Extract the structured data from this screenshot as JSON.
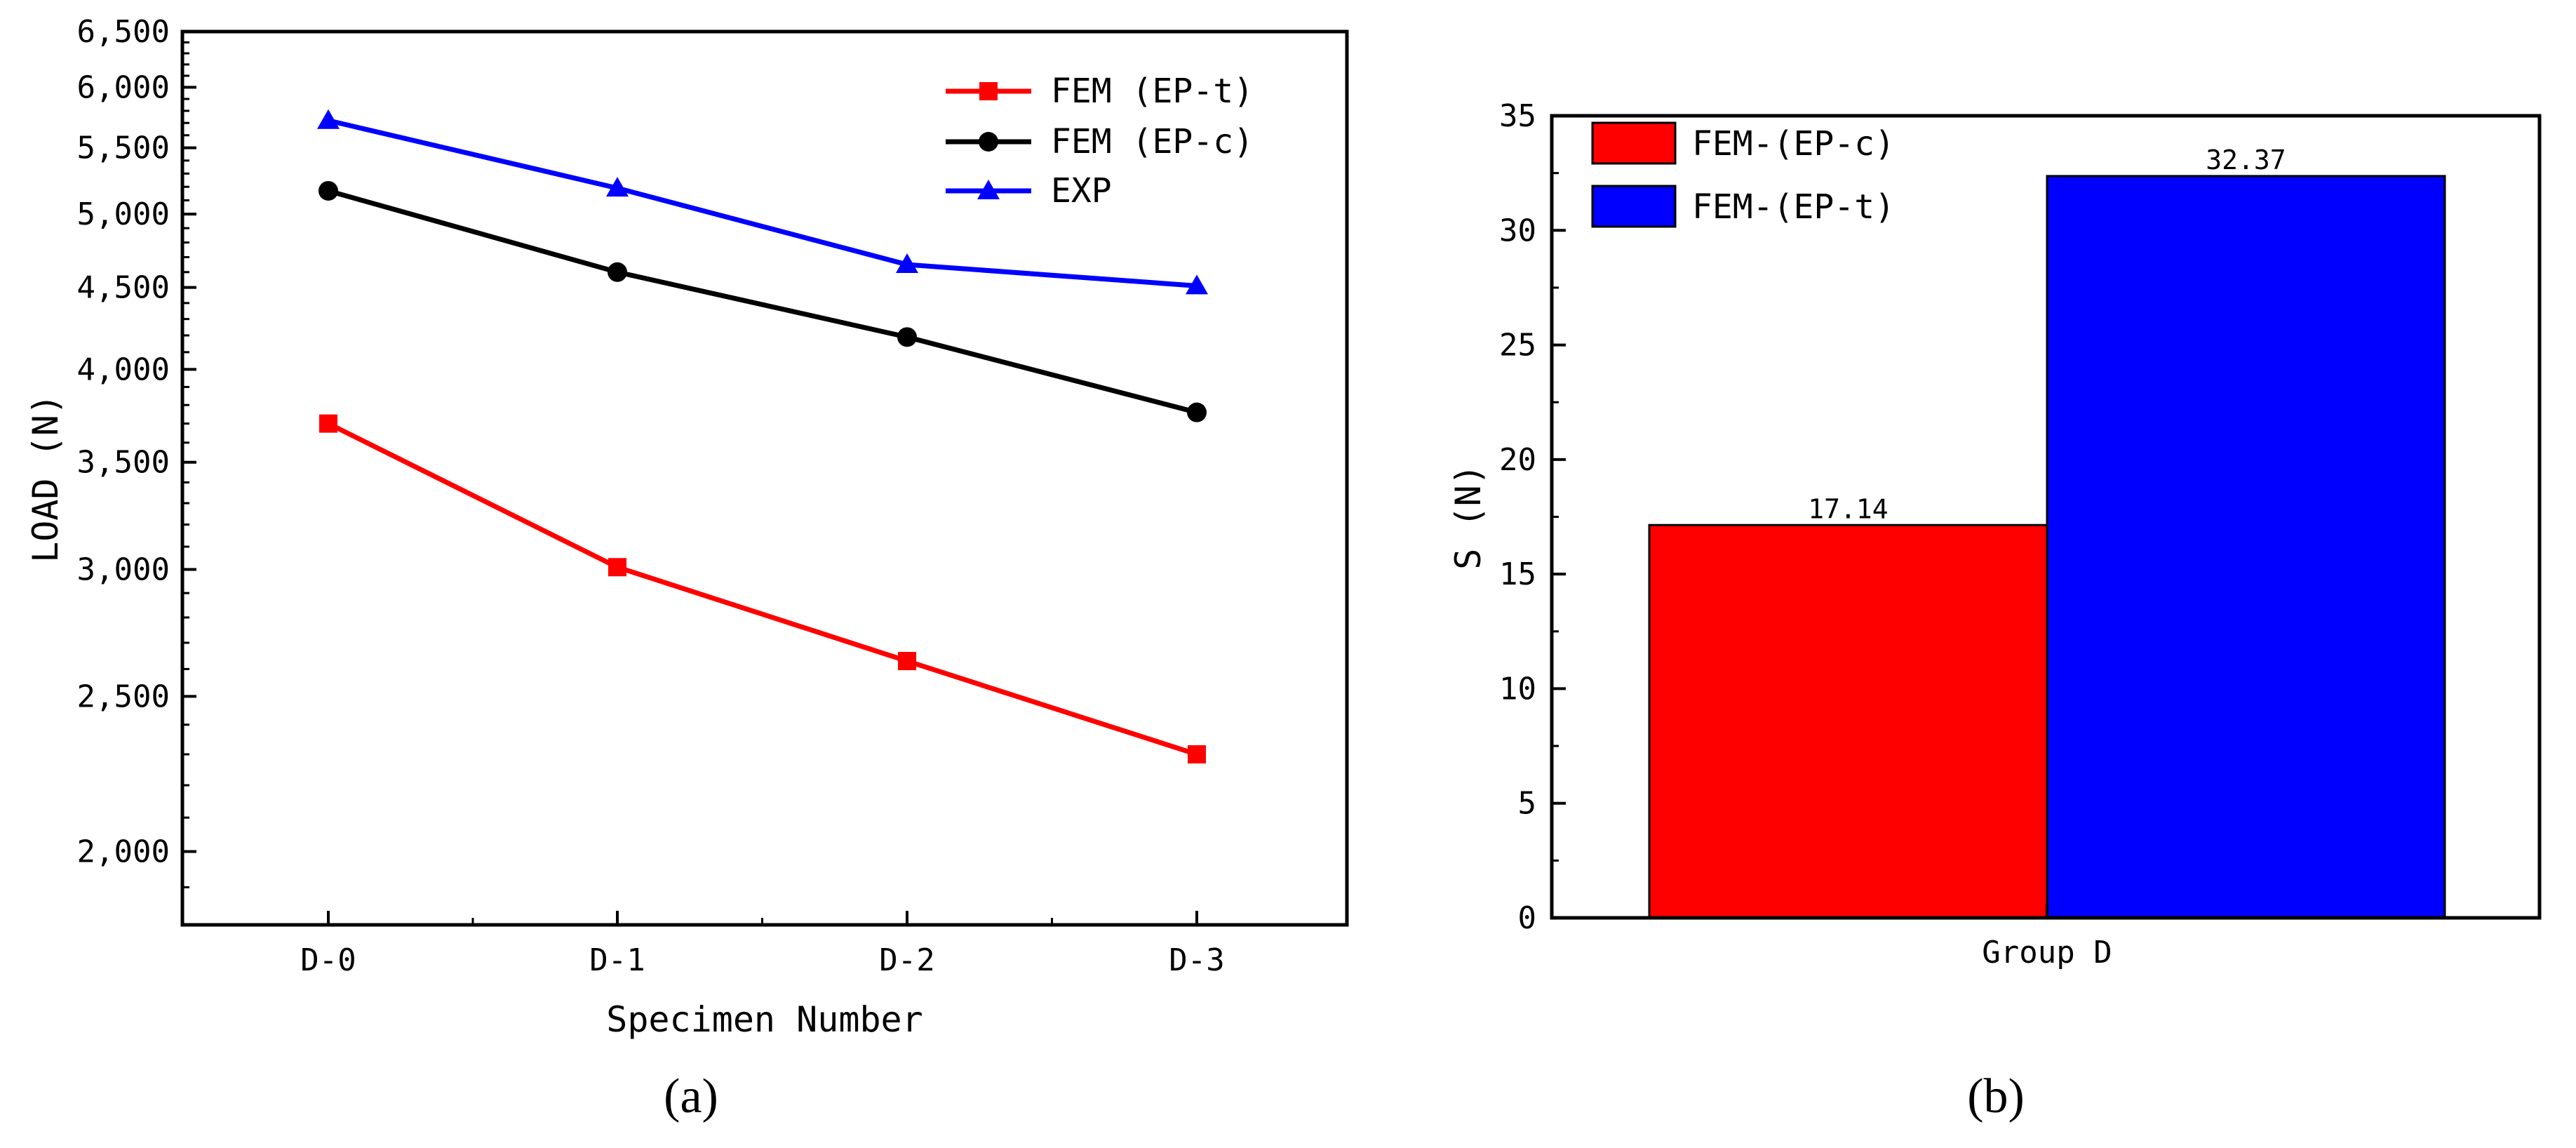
{
  "panels": [
    {
      "label": "(a)",
      "chart_data": {
        "type": "line",
        "xlabel": "Specimen Number",
        "ylabel": "LOAD (N)",
        "yscale": "log",
        "ylim": [
          1800,
          6500
        ],
        "categories": [
          "D-0",
          "D-1",
          "D-2",
          "D-3"
        ],
        "yticks": [
          2000,
          2500,
          3000,
          3500,
          4000,
          4500,
          5000,
          5500,
          6000,
          6500
        ],
        "ytick_labels": [
          "2,000",
          "2,500",
          "3,000",
          "3,500",
          "4,000",
          "4,500",
          "5,000",
          "5,500",
          "6,000",
          "6,500"
        ],
        "legend_position": "top-right",
        "series": [
          {
            "name": "FEM (EP-t)",
            "color": "#ff0000",
            "marker": "square",
            "values": [
              3700,
              3010,
              2630,
              2300
            ]
          },
          {
            "name": "FEM (EP-c)",
            "color": "#000000",
            "marker": "circle",
            "values": [
              5170,
              4600,
              4190,
              3760
            ]
          },
          {
            "name": "EXP",
            "color": "#0000ff",
            "marker": "triangle",
            "values": [
              5720,
              5190,
              4650,
              4510
            ]
          }
        ]
      }
    },
    {
      "label": "(b)",
      "chart_data": {
        "type": "bar",
        "xlabel": "",
        "ylabel": "S (N)",
        "ylim": [
          0,
          35
        ],
        "yticks": [
          0,
          5,
          10,
          15,
          20,
          25,
          30,
          35
        ],
        "category": "Group D",
        "legend_position": "top-left",
        "series": [
          {
            "name": "FEM-(EP-c)",
            "color": "#ff0000",
            "value": 17.14,
            "value_label": "17.14"
          },
          {
            "name": "FEM-(EP-t)",
            "color": "#0000ff",
            "value": 32.37,
            "value_label": "32.37"
          }
        ]
      }
    }
  ]
}
